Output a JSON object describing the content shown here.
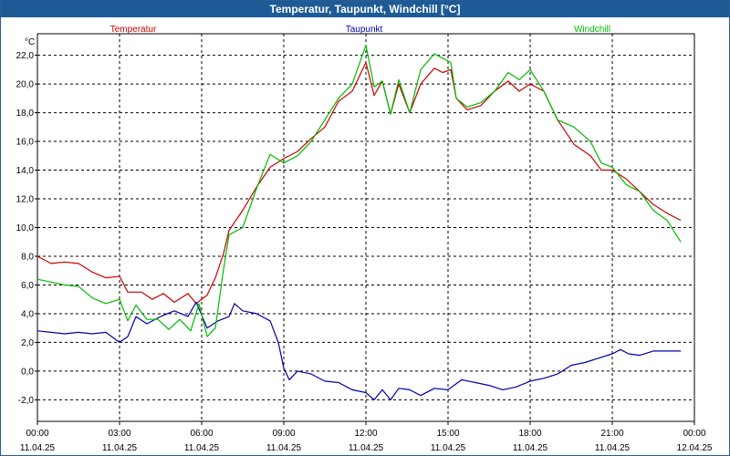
{
  "title": "Temperatur, Taupunkt, Windchill [°C]",
  "colors": {
    "titlebar": "#1e5b96",
    "temperatur": "#cc0000",
    "taupunkt": "#0000aa",
    "windchill": "#00bb00",
    "grid": "#000000"
  },
  "chart_data": {
    "type": "line",
    "unit": "°C",
    "ylim": [
      -3.5,
      23.5
    ],
    "yticks": [
      -2,
      0,
      2,
      4,
      6,
      8,
      10,
      12,
      14,
      16,
      18,
      20,
      22
    ],
    "ytick_labels": [
      "-2,0",
      "0,0",
      "2,0",
      "4,0",
      "6,0",
      "8,0",
      "10,0",
      "12,0",
      "14,0",
      "16,0",
      "18,0",
      "20,0",
      "22,0"
    ],
    "x_hours_range": [
      0,
      24
    ],
    "x_tick_times": [
      "00:00",
      "03:00",
      "06:00",
      "09:00",
      "12:00",
      "15:00",
      "18:00",
      "21:00",
      "00:00"
    ],
    "x_tick_dates": [
      "11.04.25",
      "11.04.25",
      "11.04.25",
      "11.04.25",
      "11.04.25",
      "11.04.25",
      "11.04.25",
      "11.04.25",
      "12.04.25"
    ],
    "grid": true,
    "legend_position": "top",
    "series": [
      {
        "name": "Temperatur",
        "color": "#cc0000",
        "points": [
          [
            0,
            8.0
          ],
          [
            0.5,
            7.5
          ],
          [
            1,
            7.6
          ],
          [
            1.5,
            7.5
          ],
          [
            2,
            6.9
          ],
          [
            2.5,
            6.5
          ],
          [
            3,
            6.6
          ],
          [
            3.3,
            5.5
          ],
          [
            3.8,
            5.5
          ],
          [
            4.2,
            5.0
          ],
          [
            4.6,
            5.4
          ],
          [
            5.0,
            4.8
          ],
          [
            5.5,
            5.4
          ],
          [
            5.8,
            4.7
          ],
          [
            6.2,
            5.3
          ],
          [
            6.5,
            6.5
          ],
          [
            6.8,
            8.2
          ],
          [
            7.0,
            9.8
          ],
          [
            7.5,
            11.2
          ],
          [
            8.0,
            12.8
          ],
          [
            8.5,
            14.2
          ],
          [
            9.0,
            14.8
          ],
          [
            9.5,
            15.3
          ],
          [
            10.0,
            16.2
          ],
          [
            10.5,
            17.0
          ],
          [
            11.0,
            18.8
          ],
          [
            11.5,
            19.5
          ],
          [
            12.0,
            21.5
          ],
          [
            12.3,
            19.2
          ],
          [
            12.6,
            20.2
          ],
          [
            12.9,
            17.9
          ],
          [
            13.2,
            20.0
          ],
          [
            13.6,
            18.0
          ],
          [
            14.0,
            20.0
          ],
          [
            14.5,
            21.1
          ],
          [
            14.8,
            20.8
          ],
          [
            15.1,
            21.0
          ],
          [
            15.3,
            19.0
          ],
          [
            15.7,
            18.2
          ],
          [
            16.2,
            18.5
          ],
          [
            16.7,
            19.5
          ],
          [
            17.2,
            20.2
          ],
          [
            17.6,
            19.5
          ],
          [
            18.0,
            20.0
          ],
          [
            18.5,
            19.5
          ],
          [
            19.0,
            17.5
          ],
          [
            19.6,
            15.8
          ],
          [
            20.2,
            15.0
          ],
          [
            20.6,
            14.0
          ],
          [
            21.0,
            14.0
          ],
          [
            21.5,
            13.4
          ],
          [
            22.0,
            12.5
          ],
          [
            22.5,
            11.6
          ],
          [
            23.0,
            11.0
          ],
          [
            23.5,
            10.5
          ]
        ]
      },
      {
        "name": "Taupunkt",
        "color": "#0000aa",
        "points": [
          [
            0,
            2.8
          ],
          [
            0.5,
            2.7
          ],
          [
            1,
            2.6
          ],
          [
            1.5,
            2.7
          ],
          [
            2,
            2.6
          ],
          [
            2.5,
            2.7
          ],
          [
            3,
            2.0
          ],
          [
            3.3,
            2.4
          ],
          [
            3.6,
            3.8
          ],
          [
            4.0,
            3.3
          ],
          [
            4.5,
            3.8
          ],
          [
            5.0,
            4.2
          ],
          [
            5.5,
            3.8
          ],
          [
            5.8,
            4.8
          ],
          [
            6.2,
            3.0
          ],
          [
            6.6,
            3.5
          ],
          [
            7.0,
            3.8
          ],
          [
            7.2,
            4.7
          ],
          [
            7.5,
            4.2
          ],
          [
            8.0,
            4.0
          ],
          [
            8.5,
            3.5
          ],
          [
            8.8,
            2.0
          ],
          [
            9.0,
            0.2
          ],
          [
            9.2,
            -0.6
          ],
          [
            9.5,
            0.0
          ],
          [
            10.0,
            -0.2
          ],
          [
            10.5,
            -0.7
          ],
          [
            11.0,
            -0.8
          ],
          [
            11.5,
            -1.3
          ],
          [
            12.0,
            -1.5
          ],
          [
            12.3,
            -2.0
          ],
          [
            12.6,
            -1.3
          ],
          [
            12.9,
            -2.0
          ],
          [
            13.2,
            -1.2
          ],
          [
            13.6,
            -1.3
          ],
          [
            14.0,
            -1.7
          ],
          [
            14.5,
            -1.2
          ],
          [
            15.0,
            -1.3
          ],
          [
            15.5,
            -0.6
          ],
          [
            16.0,
            -0.8
          ],
          [
            16.5,
            -1.0
          ],
          [
            17.0,
            -1.3
          ],
          [
            17.5,
            -1.1
          ],
          [
            18.0,
            -0.7
          ],
          [
            18.5,
            -0.5
          ],
          [
            19.0,
            -0.2
          ],
          [
            19.5,
            0.4
          ],
          [
            20.0,
            0.6
          ],
          [
            20.5,
            0.9
          ],
          [
            21.0,
            1.2
          ],
          [
            21.3,
            1.5
          ],
          [
            21.6,
            1.2
          ],
          [
            22.0,
            1.1
          ],
          [
            22.5,
            1.4
          ],
          [
            23.0,
            1.4
          ],
          [
            23.5,
            1.4
          ]
        ]
      },
      {
        "name": "Windchill",
        "color": "#00bb00",
        "points": [
          [
            0,
            6.4
          ],
          [
            0.5,
            6.2
          ],
          [
            1,
            6.0
          ],
          [
            1.5,
            5.9
          ],
          [
            2,
            5.1
          ],
          [
            2.5,
            4.7
          ],
          [
            3.0,
            5.0
          ],
          [
            3.3,
            3.5
          ],
          [
            3.6,
            4.6
          ],
          [
            4.0,
            3.6
          ],
          [
            4.4,
            3.6
          ],
          [
            4.8,
            2.9
          ],
          [
            5.2,
            3.6
          ],
          [
            5.6,
            2.8
          ],
          [
            5.9,
            4.7
          ],
          [
            6.2,
            2.4
          ],
          [
            6.5,
            3.0
          ],
          [
            6.8,
            7.1
          ],
          [
            7.0,
            9.5
          ],
          [
            7.5,
            10.0
          ],
          [
            8.0,
            12.7
          ],
          [
            8.5,
            15.1
          ],
          [
            9.0,
            14.5
          ],
          [
            9.5,
            15.0
          ],
          [
            10.0,
            16.0
          ],
          [
            10.5,
            17.5
          ],
          [
            11.0,
            19.0
          ],
          [
            11.5,
            20.0
          ],
          [
            12.0,
            22.7
          ],
          [
            12.3,
            19.8
          ],
          [
            12.6,
            20.2
          ],
          [
            12.9,
            17.9
          ],
          [
            13.2,
            20.3
          ],
          [
            13.6,
            18.0
          ],
          [
            14.0,
            21.0
          ],
          [
            14.5,
            22.1
          ],
          [
            14.8,
            21.8
          ],
          [
            15.1,
            21.5
          ],
          [
            15.3,
            19.0
          ],
          [
            15.7,
            18.4
          ],
          [
            16.2,
            18.7
          ],
          [
            16.7,
            19.5
          ],
          [
            17.2,
            20.8
          ],
          [
            17.6,
            20.3
          ],
          [
            18.0,
            21.0
          ],
          [
            18.5,
            19.5
          ],
          [
            19.0,
            17.5
          ],
          [
            19.6,
            17.0
          ],
          [
            20.2,
            16.0
          ],
          [
            20.6,
            14.5
          ],
          [
            21.0,
            14.2
          ],
          [
            21.5,
            13.0
          ],
          [
            22.0,
            12.5
          ],
          [
            22.5,
            11.2
          ],
          [
            23.0,
            10.5
          ],
          [
            23.5,
            9.0
          ]
        ]
      }
    ]
  }
}
